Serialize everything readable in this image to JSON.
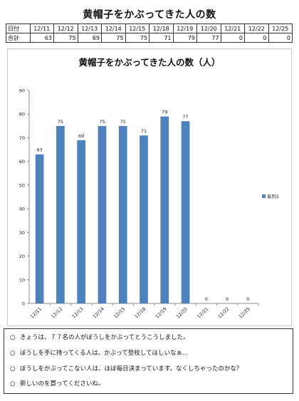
{
  "page_title": "黄帽子をかぶってきた人の数",
  "summary_table": {
    "row_labels": [
      "日付",
      "合計"
    ],
    "dates": [
      "12/11",
      "12/12",
      "12/13",
      "12/14",
      "12/15",
      "12/18",
      "12/19",
      "12/20",
      "12/21",
      "12/22",
      "12/25"
    ],
    "totals": [
      "63",
      "75",
      "69",
      "75",
      "75",
      "71",
      "79",
      "77",
      "0",
      "0",
      "0"
    ]
  },
  "chart_data": {
    "type": "bar",
    "title": "黄帽子をかぶってきた人の数（人）",
    "categories": [
      "12/11",
      "12/12",
      "12/13",
      "12/14",
      "12/15",
      "12/18",
      "12/19",
      "12/20",
      "12/21",
      "12/22",
      "12/25"
    ],
    "series": [
      {
        "name": "系列1",
        "values": [
          63,
          75,
          69,
          75,
          75,
          71,
          79,
          77,
          0,
          0,
          0
        ]
      }
    ],
    "ylim": [
      0,
      90
    ],
    "yticks": [
      0,
      10,
      20,
      30,
      40,
      50,
      60,
      70,
      80,
      90
    ],
    "legend_position": "right",
    "grid": false,
    "data_labels": true,
    "bar_color": "#4f81bd"
  },
  "notes": {
    "bullet": "○",
    "items": [
      "きょうは、７７名の人がぼうしをかぶってとうこうしました。",
      "ぼうしを手に持ってくる人は、かぶって登校してほしいなぁ…",
      "ぼうしをかぶってこない人は、ほぼ毎日決まっています。なくしちゃったのかな？",
      "新しいのを買ってくださいね。"
    ]
  }
}
